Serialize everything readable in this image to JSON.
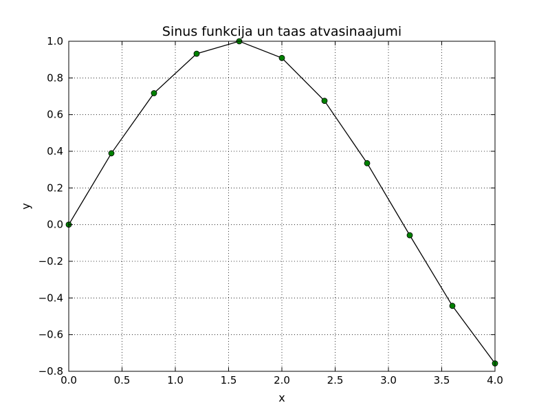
{
  "chart_data": {
    "type": "line",
    "title": "Sinus funkcija un taas atvasinaajumi",
    "xlabel": "x",
    "ylabel": "y",
    "xlim": [
      0.0,
      4.0
    ],
    "ylim": [
      -0.8,
      1.0
    ],
    "grid": true,
    "grid_style": "dotted",
    "x_ticks": [
      0.0,
      0.5,
      1.0,
      1.5,
      2.0,
      2.5,
      3.0,
      3.5,
      4.0
    ],
    "x_tick_labels": [
      "0.0",
      "0.5",
      "1.0",
      "1.5",
      "2.0",
      "2.5",
      "3.0",
      "3.5",
      "4.0"
    ],
    "y_ticks": [
      -0.8,
      -0.6,
      -0.4,
      -0.2,
      0.0,
      0.2,
      0.4,
      0.6,
      0.8,
      1.0
    ],
    "y_tick_labels": [
      "−0.8",
      "−0.6",
      "−0.4",
      "−0.2",
      "0.0",
      "0.2",
      "0.4",
      "0.6",
      "0.8",
      "1.0"
    ],
    "series": [
      {
        "line_color": "#000000",
        "marker": "circle",
        "marker_color": "#008000",
        "x": [
          0.0,
          0.4,
          0.8,
          1.2,
          1.6,
          2.0,
          2.4,
          2.8,
          3.2,
          3.6,
          4.0
        ],
        "y": [
          0.0,
          0.389,
          0.717,
          0.932,
          1.0,
          0.909,
          0.675,
          0.335,
          -0.058,
          -0.443,
          -0.757
        ]
      }
    ]
  }
}
